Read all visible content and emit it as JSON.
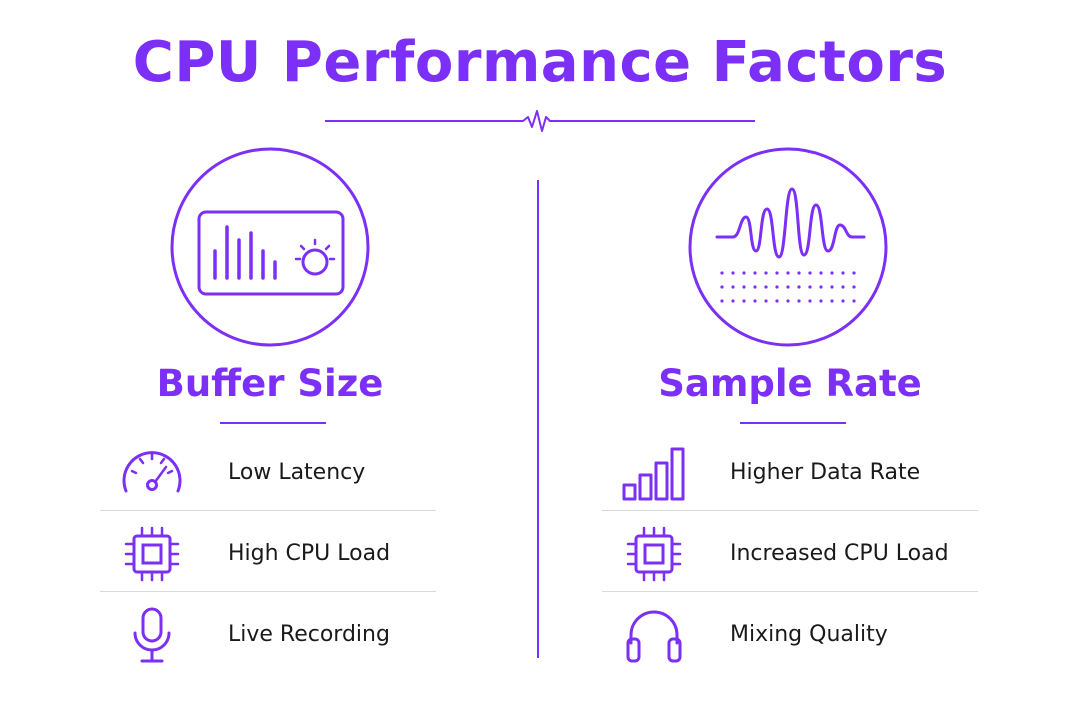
{
  "title": "CPU Performance Factors",
  "columns": [
    {
      "heading": "Buffer Size",
      "hero_icon": "audio-interface-icon",
      "factors": [
        {
          "label": "Low Latency",
          "icon": "speedometer-icon"
        },
        {
          "label": "High CPU Load",
          "icon": "cpu-chip-icon"
        },
        {
          "label": "Live Recording",
          "icon": "microphone-icon"
        }
      ]
    },
    {
      "heading": "Sample Rate",
      "hero_icon": "waveform-icon",
      "factors": [
        {
          "label": "Higher Data Rate",
          "icon": "signal-bars-icon"
        },
        {
          "label": "Increased CPU Load",
          "icon": "cpu-chip-icon"
        },
        {
          "label": "Mixing Quality",
          "icon": "headphones-icon"
        }
      ]
    }
  ],
  "colors": {
    "accent": "#7b2ff7",
    "text": "#1a1a1a",
    "separator": "#d9d9de"
  }
}
